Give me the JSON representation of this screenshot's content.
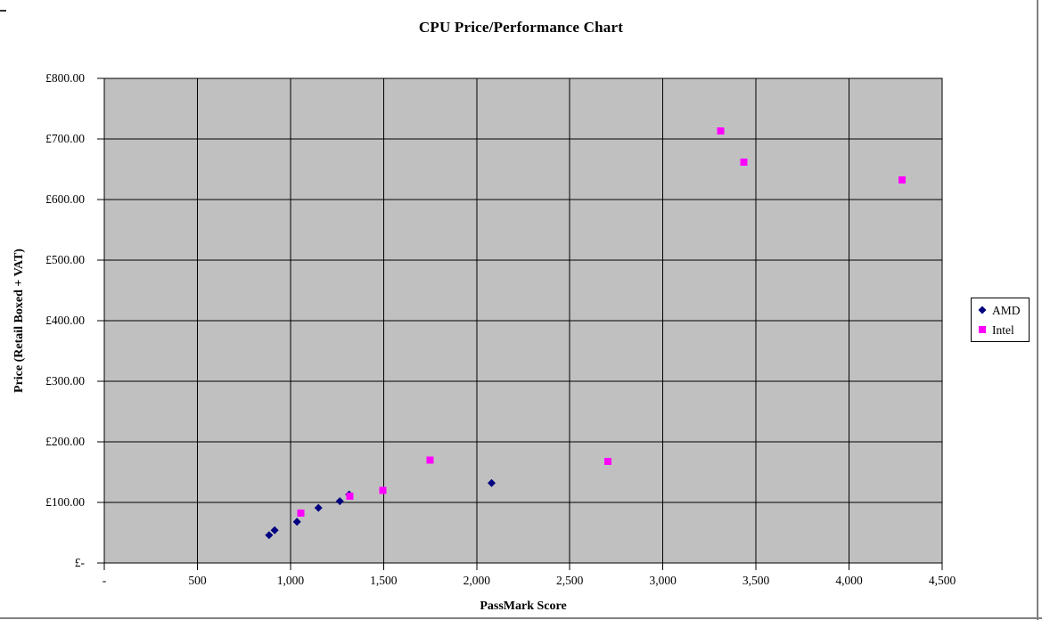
{
  "chart_data": {
    "type": "scatter",
    "title": "CPU Price/Performance Chart",
    "xlabel": "PassMark Score",
    "ylabel": "Price (Retail Boxed + VAT)",
    "xlim": [
      0,
      4500
    ],
    "ylim": [
      0,
      800
    ],
    "grid": true,
    "x_ticks": [
      0,
      500,
      1000,
      1500,
      2000,
      2500,
      3000,
      3500,
      4000,
      4500
    ],
    "x_tick_labels": [
      "-",
      "500",
      "1,000",
      "1,500",
      "2,000",
      "2,500",
      "3,000",
      "3,500",
      "4,000",
      "4,500"
    ],
    "y_ticks": [
      0,
      100,
      200,
      300,
      400,
      500,
      600,
      700,
      800
    ],
    "y_tick_labels": [
      "£-",
      "£100.00",
      "£200.00",
      "£300.00",
      "£400.00",
      "£500.00",
      "£600.00",
      "£700.00",
      "£800.00"
    ],
    "colors": {
      "plot_background": "#C0C0C0",
      "gridline": "#000000",
      "axis": "#000000",
      "window_edge": "#808080"
    },
    "legend": {
      "position": "right",
      "entries": [
        {
          "label": "AMD",
          "marker": "diamond",
          "color": "#000080"
        },
        {
          "label": "Intel",
          "marker": "square",
          "color": "#FF00FF"
        }
      ]
    },
    "series": [
      {
        "name": "AMD",
        "marker": "diamond",
        "color": "#000080",
        "points": [
          [
            885,
            46
          ],
          [
            915,
            54
          ],
          [
            1035,
            68
          ],
          [
            1150,
            91
          ],
          [
            1265,
            102
          ],
          [
            1315,
            113
          ],
          [
            2080,
            132
          ]
        ]
      },
      {
        "name": "Intel",
        "marker": "square",
        "color": "#FF00FF",
        "points": [
          [
            1055,
            82
          ],
          [
            1320,
            110
          ],
          [
            1495,
            120
          ],
          [
            1750,
            170
          ],
          [
            2705,
            168
          ],
          [
            3310,
            713
          ],
          [
            3435,
            662
          ],
          [
            4285,
            632
          ]
        ]
      }
    ]
  }
}
